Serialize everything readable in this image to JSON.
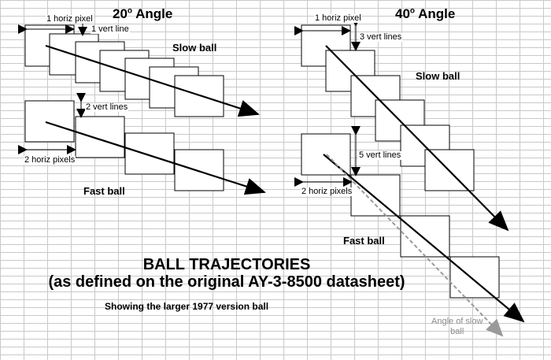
{
  "left_panel": {
    "heading_main": "20",
    "heading_deg": "o",
    "heading_rest": " Angle",
    "slow_label": "Slow ball",
    "fast_label": "Fast ball",
    "dim_horiz_slow": "1 horiz pixel",
    "dim_vert_slow": "1 vert line",
    "dim_vert_fast": "2 vert lines",
    "dim_horiz_fast": "2 horiz pixels"
  },
  "right_panel": {
    "heading_main": "40",
    "heading_deg": "o",
    "heading_rest": " Angle",
    "slow_label": "Slow ball",
    "fast_label": "Fast ball",
    "dim_horiz_slow": "1 horiz pixel",
    "dim_vert_slow": "3 vert lines",
    "dim_vert_fast": "5 vert lines",
    "dim_horiz_fast": "2 horiz pixels",
    "ghost_note": "Angle of slow\nball"
  },
  "title": {
    "line1": "BALL TRAJECTORIES",
    "line2": "(as defined on the original AY-3-8500 datasheet)",
    "subtitle": "Showing the larger 1977 version ball"
  }
}
